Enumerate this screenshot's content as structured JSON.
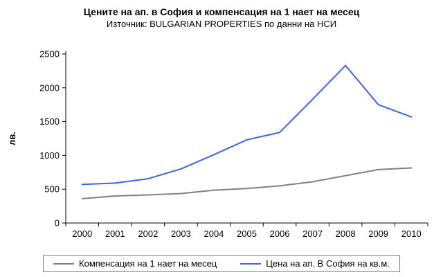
{
  "title": "Цените на ап. в София и компенсация на 1 нает на месец",
  "subtitle": "Източник: BULGARIAN PROPERTIES по данни на НСИ",
  "chart_data": {
    "type": "line",
    "categories": [
      "2000",
      "2001",
      "2002",
      "2003",
      "2004",
      "2005",
      "2006",
      "2007",
      "2008",
      "2009",
      "2010"
    ],
    "series": [
      {
        "name": "Компенсация на 1 нает на месец",
        "color": "#808080",
        "values": [
          360,
          400,
          415,
          435,
          485,
          510,
          550,
          610,
          700,
          790,
          815
        ]
      },
      {
        "name": "Цена на ап. В София на кв.м.",
        "color": "#3b63ea",
        "values": [
          570,
          590,
          655,
          800,
          1010,
          1230,
          1340,
          1830,
          2330,
          1750,
          1570
        ]
      }
    ],
    "title": "Цените на ап. в София и компенсация на 1 нает на месец",
    "xlabel": "",
    "ylabel": "лв.",
    "ylim": [
      0,
      2500
    ],
    "yticks": [
      0,
      500,
      1000,
      1500,
      2000,
      2500
    ],
    "grid": false,
    "legend_position": "bottom"
  }
}
